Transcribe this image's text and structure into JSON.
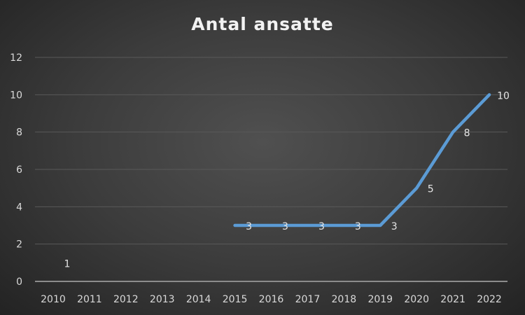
{
  "chart_data": {
    "type": "line",
    "title": "Antal ansatte",
    "categories": [
      "2010",
      "2011",
      "2012",
      "2013",
      "2014",
      "2015",
      "2016",
      "2017",
      "2018",
      "2019",
      "2020",
      "2021",
      "2022"
    ],
    "series": [
      {
        "values": [
          1,
          null,
          null,
          null,
          null,
          3,
          3,
          3,
          3,
          3,
          5,
          8,
          10
        ],
        "color": "#5b9bd5"
      }
    ],
    "ylim": [
      0,
      12
    ],
    "yticks": [
      "0",
      "2",
      "4",
      "6",
      "8",
      "10",
      "12"
    ],
    "grid": true,
    "data_labels": true,
    "xlabel": "",
    "ylabel": ""
  }
}
